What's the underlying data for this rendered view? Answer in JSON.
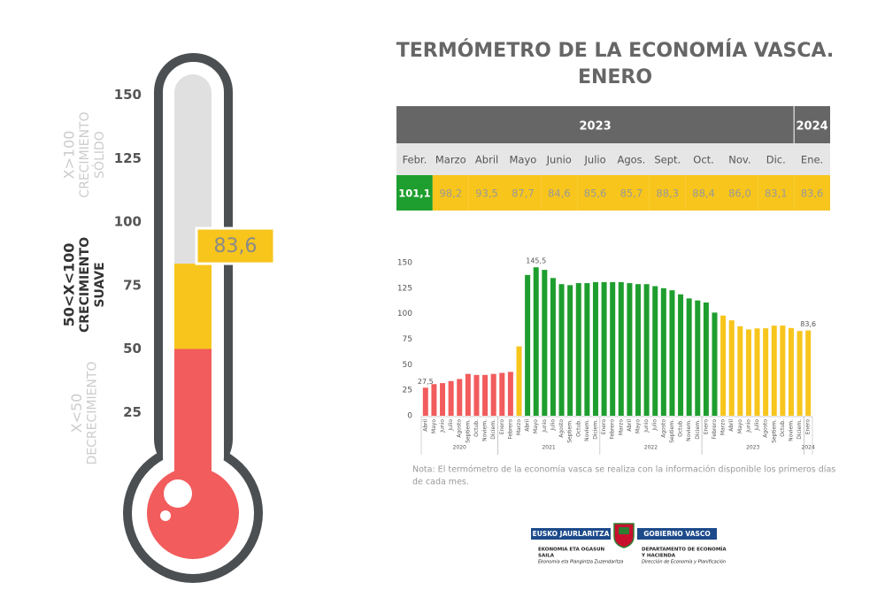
{
  "title": [
    "TERMÓMETRO DE LA ECONOMÍA VASCA.",
    "ENERO"
  ],
  "color_scale": {
    "thresholds": [
      50,
      100
    ],
    "colors": [
      "#f25c5c",
      "#f7c51c",
      "#1e9e2e"
    ]
  },
  "table": {
    "columns": [
      {
        "year": "2023",
        "month": "Febr.",
        "value": 101.1,
        "label": "101,1"
      },
      {
        "year": "2023",
        "month": "Marzo",
        "value": 98.2,
        "label": "98,2"
      },
      {
        "year": "2023",
        "month": "Abril",
        "value": 93.5,
        "label": "93,5"
      },
      {
        "year": "2023",
        "month": "Mayo",
        "value": 87.7,
        "label": "87,7"
      },
      {
        "year": "2023",
        "month": "Junio",
        "value": 84.6,
        "label": "84,6"
      },
      {
        "year": "2023",
        "month": "Julio",
        "value": 85.6,
        "label": "85,6"
      },
      {
        "year": "2023",
        "month": "Agos.",
        "value": 85.7,
        "label": "85,7"
      },
      {
        "year": "2023",
        "month": "Sept.",
        "value": 88.3,
        "label": "88,3"
      },
      {
        "year": "2023",
        "month": "Oct.",
        "value": 88.4,
        "label": "88,4"
      },
      {
        "year": "2023",
        "month": "Nov.",
        "value": 86.0,
        "label": "86,0"
      },
      {
        "year": "2023",
        "month": "Dic.",
        "value": 83.1,
        "label": "83,1"
      },
      {
        "year": "2024",
        "month": "Ene.",
        "value": 83.6,
        "label": "83,6"
      }
    ]
  },
  "chart_data": [
    {
      "type": "gauge",
      "value": 83.6,
      "value_label": "83,6",
      "ylim": [
        0,
        150
      ],
      "yticks": [
        25,
        50,
        75,
        100,
        125,
        150
      ],
      "zones": [
        {
          "range": "X>100",
          "lines": [
            "CRECIMIENTO",
            "SÓLIDO"
          ]
        },
        {
          "range": "50<X<100",
          "lines": [
            "CRECIMIENTO",
            "SUAVE"
          ]
        },
        {
          "range": "X<50",
          "lines": [
            "DECRECIMIENTO"
          ]
        }
      ]
    },
    {
      "type": "bar",
      "ylim": [
        0,
        150
      ],
      "yticks": [
        0,
        25,
        50,
        75,
        100,
        125,
        150
      ],
      "groups": [
        {
          "label": "2020",
          "categories": [
            "Abril",
            "Mayo",
            "Junio",
            "Julio",
            "Agosto",
            "Septiem.",
            "Octub.",
            "Noviem.",
            "Diciem."
          ],
          "values": [
            27.5,
            31,
            32,
            34,
            36,
            41,
            40,
            40,
            41
          ],
          "value_labels": [
            "27,5",
            null,
            null,
            null,
            null,
            null,
            null,
            null,
            null
          ]
        },
        {
          "label": "2021",
          "categories": [
            "Enero",
            "Febrero",
            "Marzo",
            "Abril",
            "Mayo",
            "Junio",
            "Julio",
            "Agosto",
            "Septiem.",
            "Octub.",
            "Noviem.",
            "Diciem."
          ],
          "values": [
            42,
            43,
            68,
            138,
            145.5,
            143,
            135,
            129,
            128,
            130,
            130,
            131
          ],
          "value_labels": [
            null,
            null,
            null,
            null,
            "145,5",
            null,
            null,
            null,
            null,
            null,
            null,
            null
          ]
        },
        {
          "label": "2022",
          "categories": [
            "Enero",
            "Febrero",
            "Marzo",
            "Abril",
            "Mayo",
            "Junio",
            "Julio",
            "Agosto",
            "Septiem.",
            "Octub.",
            "Noviem.",
            "Diciem."
          ],
          "values": [
            131,
            131,
            131,
            130,
            129,
            129,
            127,
            125,
            123,
            119,
            115,
            113
          ]
        },
        {
          "label": "2023",
          "categories": [
            "Enero",
            "Febrero",
            "Marzo",
            "Abril",
            "Mayo",
            "Junio",
            "Julio",
            "Agosto",
            "Septiem.",
            "Octub.",
            "Noviem.",
            "Diciem."
          ],
          "values": [
            111,
            101.1,
            98.2,
            93.5,
            87.7,
            84.6,
            85.6,
            85.7,
            88.3,
            88.4,
            86.0,
            83.1
          ]
        },
        {
          "label": "2024",
          "categories": [
            "Enero"
          ],
          "values": [
            83.6
          ],
          "value_labels": [
            "83,6"
          ]
        }
      ]
    }
  ],
  "note": [
    "Nota: El termómetro de la economía vasca se realiza con la información disponible los primeros días",
    "de cada mes."
  ],
  "logo": {
    "left": "EUSKO JAURLARITZA",
    "right": "GOBIERNO VASCO",
    "left_lines": [
      "EKONOMIA ETA OGASUN",
      "SAILA",
      "Ekonomia eta Plangintza Zuzendaritza"
    ],
    "right_lines": [
      "DEPARTAMENTO DE ECONOMÍA",
      "Y HACIENDA",
      "Dirección de Economía y Planificación"
    ]
  }
}
